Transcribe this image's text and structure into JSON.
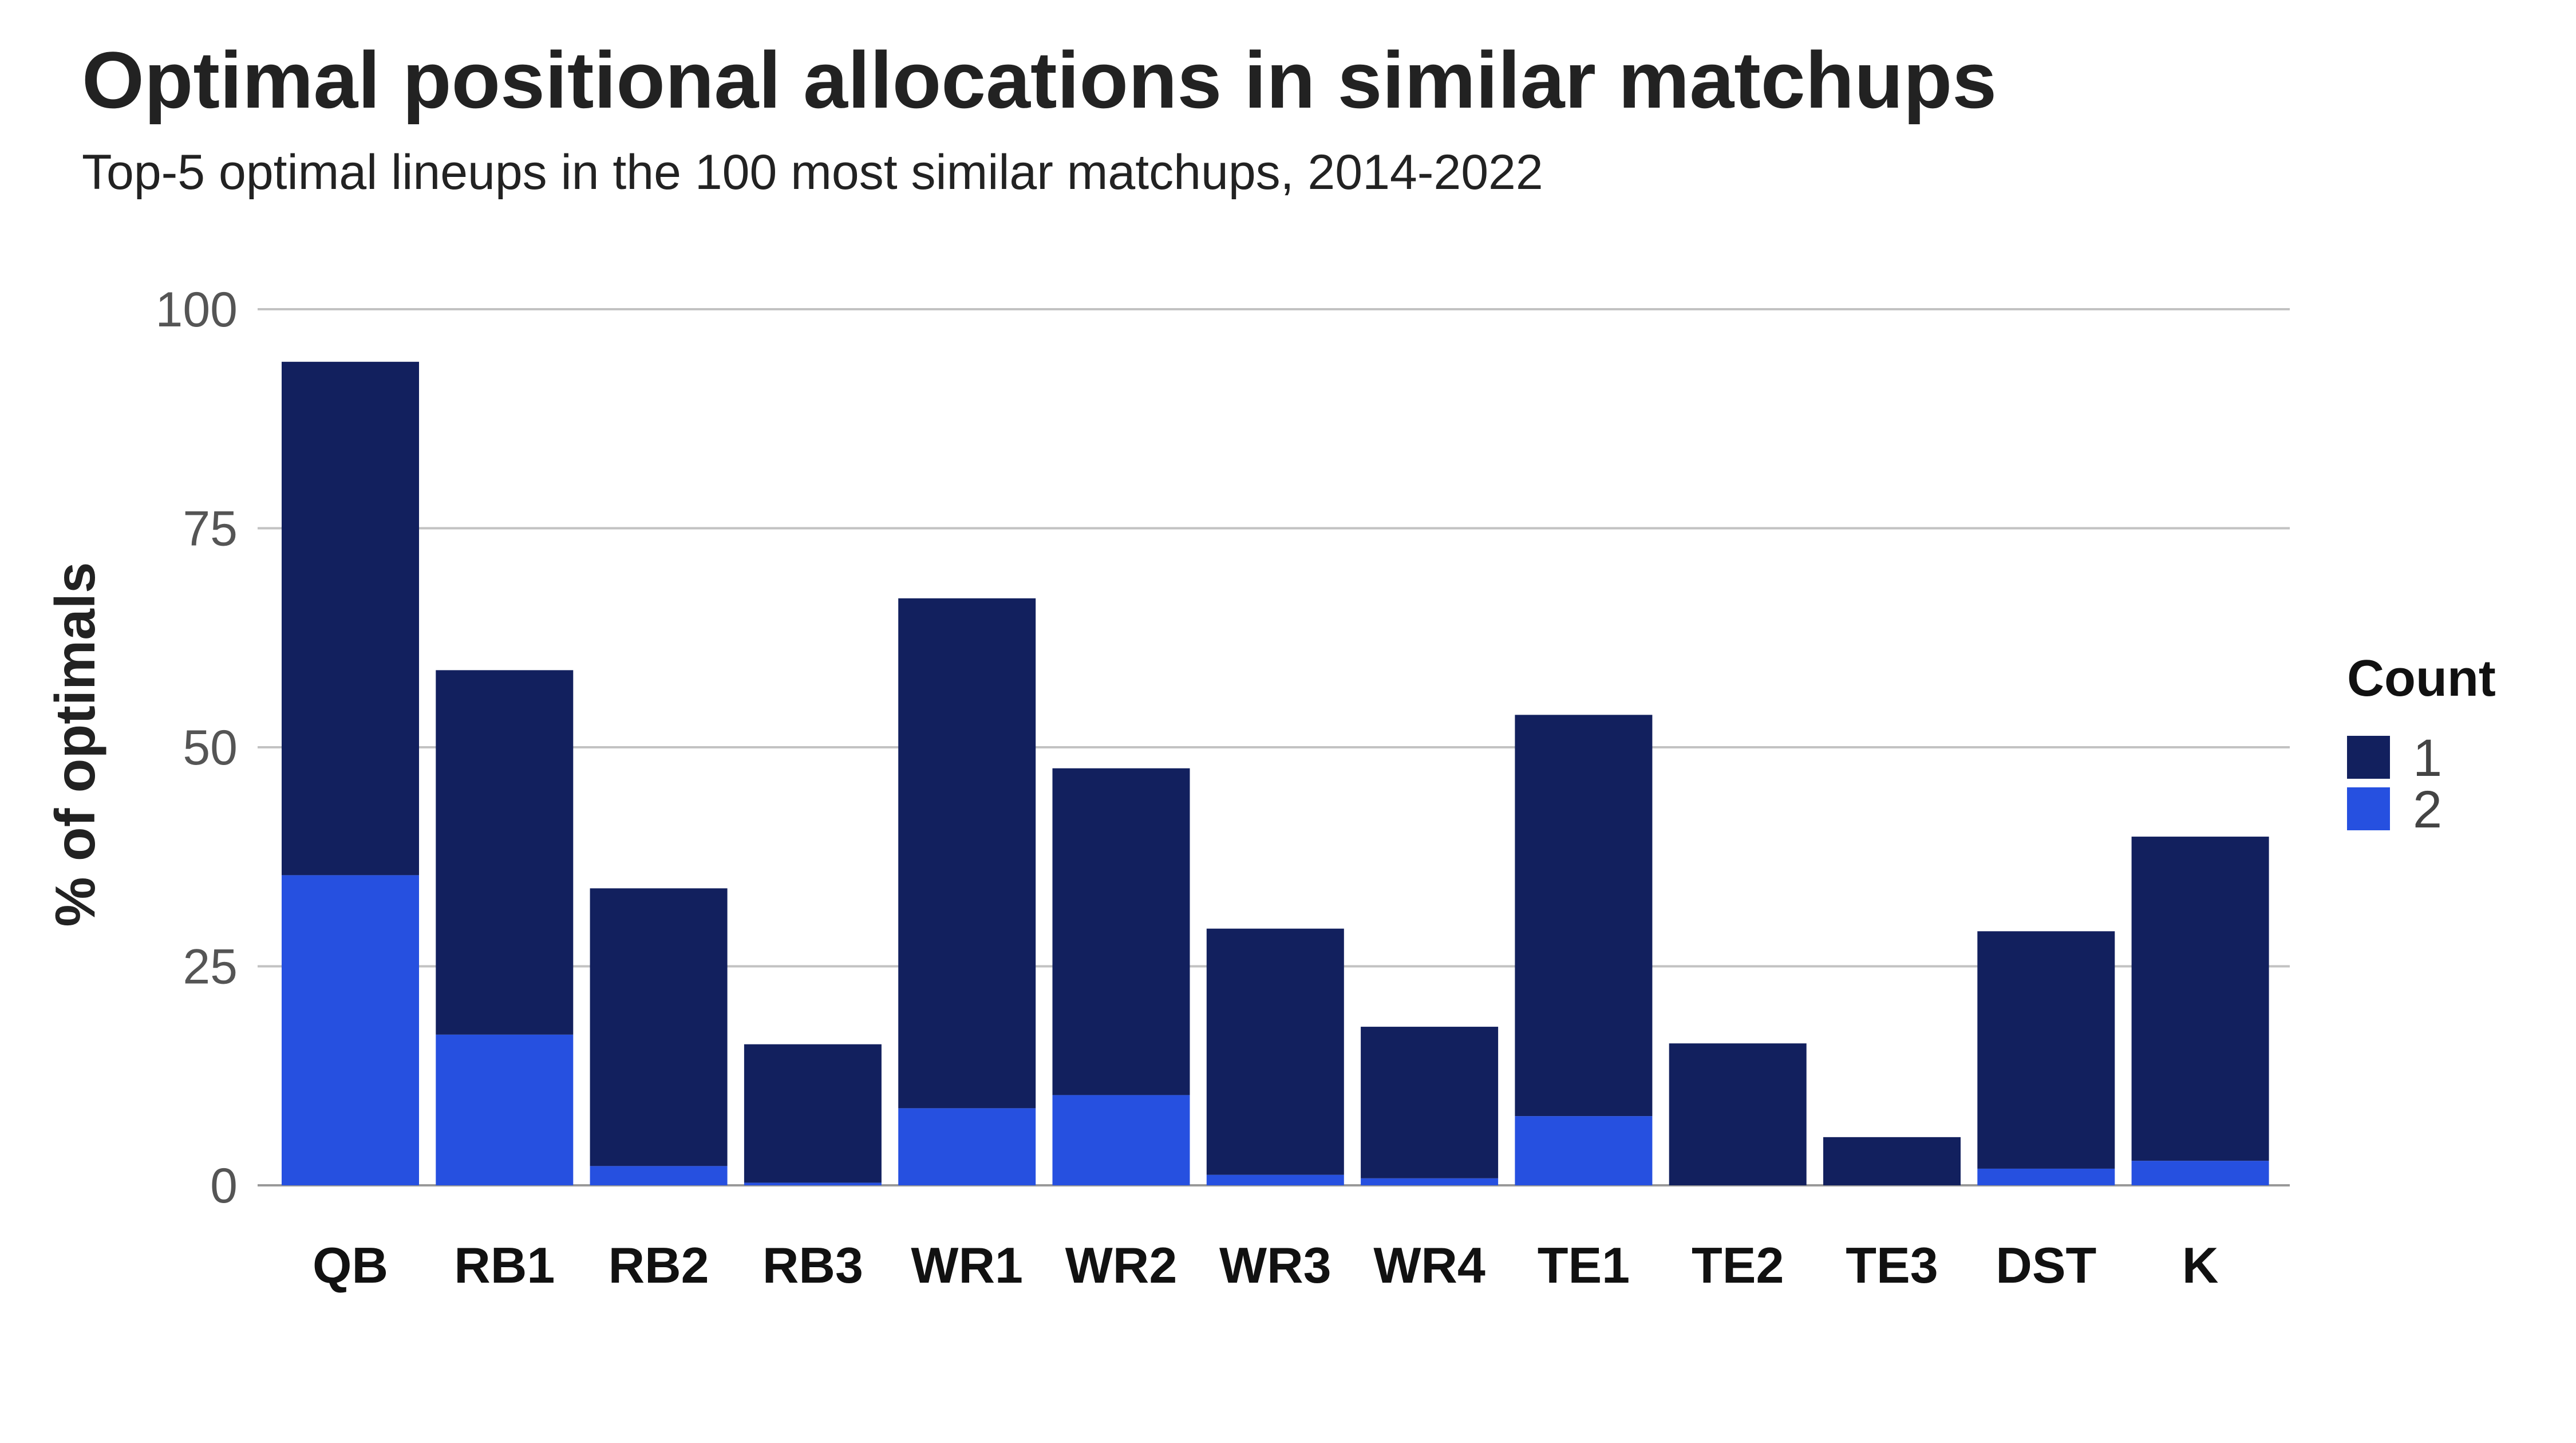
{
  "chart_data": {
    "type": "bar",
    "stacked": true,
    "title": "Optimal positional allocations in similar matchups",
    "subtitle": "Top-5 optimal lineups in the 100 most similar matchups, 2014-2022",
    "xlabel": "",
    "ylabel": "% of optimals",
    "ylim": [
      0,
      100
    ],
    "yticks": [
      0,
      25,
      50,
      75,
      100
    ],
    "grid": true,
    "legend_position": "right",
    "legend_title": "Count",
    "categories": [
      "QB",
      "RB1",
      "RB2",
      "RB3",
      "WR1",
      "WR2",
      "WR3",
      "WR4",
      "TE1",
      "TE2",
      "TE3",
      "DST",
      "K"
    ],
    "series": [
      {
        "name": "1",
        "color": "#12205E",
        "values": [
          58.6,
          41.6,
          31.7,
          15.8,
          58.2,
          37.3,
          28.1,
          17.3,
          45.8,
          16.2,
          5.5,
          27.1,
          37.0
        ]
      },
      {
        "name": "2",
        "color": "#2650E0",
        "values": [
          35.4,
          17.2,
          2.2,
          0.3,
          8.8,
          10.3,
          1.2,
          0.8,
          7.9,
          0.0,
          0.0,
          1.9,
          2.8
        ]
      }
    ]
  }
}
